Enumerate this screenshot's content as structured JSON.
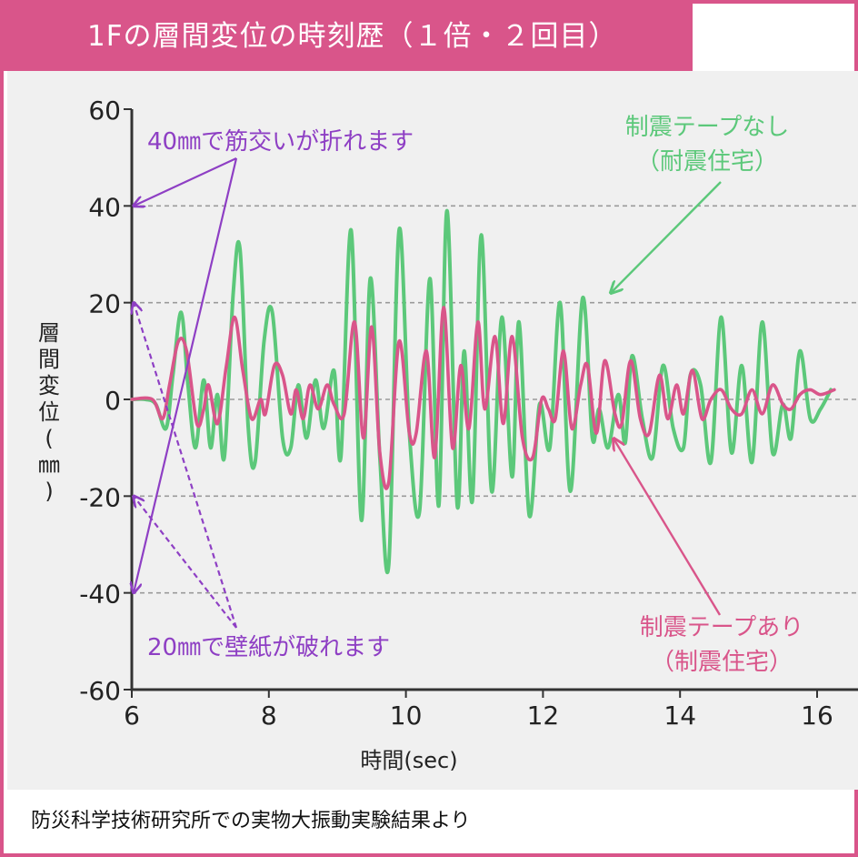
{
  "header": {
    "title": "1Fの層間変位の時刻歴（１倍・２回目）"
  },
  "footer": {
    "source": "防災科学技術研究所での実物大振動実験結果より"
  },
  "colors": {
    "accent": "#d9558a",
    "series_no_tape": "#5cc87a",
    "series_with_tape": "#d9558a",
    "annotation": "#8e3fc4",
    "plot_bg": "#f0f0f0"
  },
  "chart_data": {
    "type": "line",
    "title": "1Fの層間変位の時刻歴（１倍・２回目）",
    "xlabel": "時間(sec)",
    "ylabel": "層間変位(㎜)",
    "xlim": [
      6,
      16.4
    ],
    "ylim": [
      -60,
      60
    ],
    "xticks": [
      {
        "value": 6,
        "label": "6"
      },
      {
        "value": 8,
        "label": "8"
      },
      {
        "value": 10,
        "label": "10"
      },
      {
        "value": 12,
        "label": "12"
      },
      {
        "value": 14,
        "label": "14"
      },
      {
        "value": 16,
        "label": "16"
      }
    ],
    "yticks": [
      {
        "value": 60,
        "label": "60"
      },
      {
        "value": 40,
        "label": "40"
      },
      {
        "value": 20,
        "label": "20"
      },
      {
        "value": 0,
        "label": "0"
      },
      {
        "value": -20,
        "label": "-20"
      },
      {
        "value": -40,
        "label": "-40"
      },
      {
        "value": -60,
        "label": "-60"
      }
    ],
    "gridlines_y": [
      40,
      20,
      0,
      -20,
      -40
    ],
    "series": [
      {
        "name": "制震テープなし（耐震住宅）",
        "label_lines": [
          "制震テープなし",
          "（耐震住宅）"
        ],
        "color": "#5cc87a",
        "points": [
          [
            6.0,
            0
          ],
          [
            6.2,
            0
          ],
          [
            6.35,
            -1
          ],
          [
            6.5,
            -6
          ],
          [
            6.6,
            5
          ],
          [
            6.72,
            18
          ],
          [
            6.82,
            3
          ],
          [
            6.93,
            -10
          ],
          [
            7.05,
            4
          ],
          [
            7.15,
            -10
          ],
          [
            7.25,
            1
          ],
          [
            7.35,
            -12
          ],
          [
            7.48,
            22
          ],
          [
            7.58,
            31
          ],
          [
            7.7,
            -6
          ],
          [
            7.8,
            -13
          ],
          [
            7.93,
            12
          ],
          [
            8.05,
            18
          ],
          [
            8.2,
            -8
          ],
          [
            8.32,
            -10
          ],
          [
            8.43,
            3
          ],
          [
            8.55,
            -8
          ],
          [
            8.68,
            4
          ],
          [
            8.8,
            -6
          ],
          [
            8.95,
            6
          ],
          [
            9.05,
            -12
          ],
          [
            9.2,
            35
          ],
          [
            9.35,
            -25
          ],
          [
            9.48,
            25
          ],
          [
            9.62,
            -12
          ],
          [
            9.75,
            -34
          ],
          [
            9.9,
            35
          ],
          [
            10.05,
            -7
          ],
          [
            10.2,
            -23
          ],
          [
            10.35,
            25
          ],
          [
            10.48,
            -22
          ],
          [
            10.6,
            39
          ],
          [
            10.75,
            -22
          ],
          [
            10.85,
            10
          ],
          [
            10.97,
            -21
          ],
          [
            11.1,
            34
          ],
          [
            11.25,
            -19
          ],
          [
            11.4,
            17
          ],
          [
            11.55,
            -16
          ],
          [
            11.65,
            16
          ],
          [
            11.8,
            -24
          ],
          [
            11.95,
            -1
          ],
          [
            12.1,
            -10
          ],
          [
            12.25,
            20
          ],
          [
            12.4,
            -19
          ],
          [
            12.58,
            21
          ],
          [
            12.72,
            -8
          ],
          [
            12.82,
            -2
          ],
          [
            12.95,
            -10
          ],
          [
            13.1,
            1
          ],
          [
            13.2,
            -9
          ],
          [
            13.3,
            9
          ],
          [
            13.45,
            -4
          ],
          [
            13.6,
            -12
          ],
          [
            13.75,
            7
          ],
          [
            13.9,
            -6
          ],
          [
            14.05,
            -10
          ],
          [
            14.15,
            5
          ],
          [
            14.3,
            3
          ],
          [
            14.45,
            -13
          ],
          [
            14.6,
            17
          ],
          [
            14.75,
            -11
          ],
          [
            14.9,
            7
          ],
          [
            15.05,
            -13
          ],
          [
            15.2,
            16
          ],
          [
            15.35,
            -11
          ],
          [
            15.5,
            -1
          ],
          [
            15.62,
            -8
          ],
          [
            15.75,
            10
          ],
          [
            15.9,
            -4
          ],
          [
            16.05,
            -2
          ],
          [
            16.2,
            2
          ]
        ]
      },
      {
        "name": "制震テープあり（制震住宅）",
        "label_lines": [
          "制震テープあり",
          "（制震住宅）"
        ],
        "color": "#d9558a",
        "points": [
          [
            6.0,
            0
          ],
          [
            6.3,
            0
          ],
          [
            6.45,
            -4
          ],
          [
            6.55,
            3
          ],
          [
            6.68,
            12
          ],
          [
            6.8,
            10
          ],
          [
            6.95,
            -5
          ],
          [
            7.05,
            -2
          ],
          [
            7.12,
            3
          ],
          [
            7.25,
            -5
          ],
          [
            7.38,
            7
          ],
          [
            7.5,
            17
          ],
          [
            7.62,
            6
          ],
          [
            7.75,
            -4
          ],
          [
            7.88,
            0
          ],
          [
            7.95,
            -3
          ],
          [
            8.08,
            7
          ],
          [
            8.2,
            5
          ],
          [
            8.32,
            -3
          ],
          [
            8.4,
            2
          ],
          [
            8.5,
            -4
          ],
          [
            8.6,
            3
          ],
          [
            8.72,
            -2
          ],
          [
            8.85,
            3
          ],
          [
            8.95,
            -1
          ],
          [
            9.1,
            -3
          ],
          [
            9.25,
            16
          ],
          [
            9.38,
            -8
          ],
          [
            9.5,
            15
          ],
          [
            9.62,
            -11
          ],
          [
            9.75,
            -17
          ],
          [
            9.9,
            12
          ],
          [
            10.05,
            -7
          ],
          [
            10.15,
            -7
          ],
          [
            10.3,
            10
          ],
          [
            10.42,
            -12
          ],
          [
            10.55,
            19
          ],
          [
            10.68,
            -10
          ],
          [
            10.8,
            7
          ],
          [
            10.92,
            -6
          ],
          [
            11.05,
            16
          ],
          [
            11.15,
            -2
          ],
          [
            11.3,
            13
          ],
          [
            11.42,
            -5
          ],
          [
            11.55,
            13
          ],
          [
            11.7,
            -8
          ],
          [
            11.85,
            -12
          ],
          [
            11.98,
            0
          ],
          [
            12.08,
            -2
          ],
          [
            12.18,
            -4
          ],
          [
            12.3,
            10
          ],
          [
            12.42,
            -6
          ],
          [
            12.55,
            3
          ],
          [
            12.65,
            7
          ],
          [
            12.78,
            -7
          ],
          [
            12.9,
            8
          ],
          [
            13.05,
            -3
          ],
          [
            13.15,
            -5
          ],
          [
            13.28,
            8
          ],
          [
            13.42,
            -4
          ],
          [
            13.55,
            -7
          ],
          [
            13.7,
            5
          ],
          [
            13.82,
            -4
          ],
          [
            13.95,
            3
          ],
          [
            14.05,
            -3
          ],
          [
            14.18,
            6
          ],
          [
            14.32,
            -4
          ],
          [
            14.45,
            0
          ],
          [
            14.6,
            2
          ],
          [
            14.75,
            -2
          ],
          [
            14.9,
            -3
          ],
          [
            15.05,
            2
          ],
          [
            15.2,
            -3
          ],
          [
            15.35,
            3
          ],
          [
            15.5,
            -1
          ],
          [
            15.62,
            -2
          ],
          [
            15.75,
            1
          ],
          [
            15.9,
            2
          ],
          [
            16.05,
            1
          ],
          [
            16.25,
            2
          ]
        ]
      }
    ],
    "annotations": [
      {
        "text": "40㎜で筋交いが折れます",
        "targets_y": [
          40,
          -40
        ],
        "style": "solid"
      },
      {
        "text": "20㎜で壁紙が破れます",
        "targets_y": [
          20,
          -20
        ],
        "style": "dashed"
      }
    ]
  }
}
